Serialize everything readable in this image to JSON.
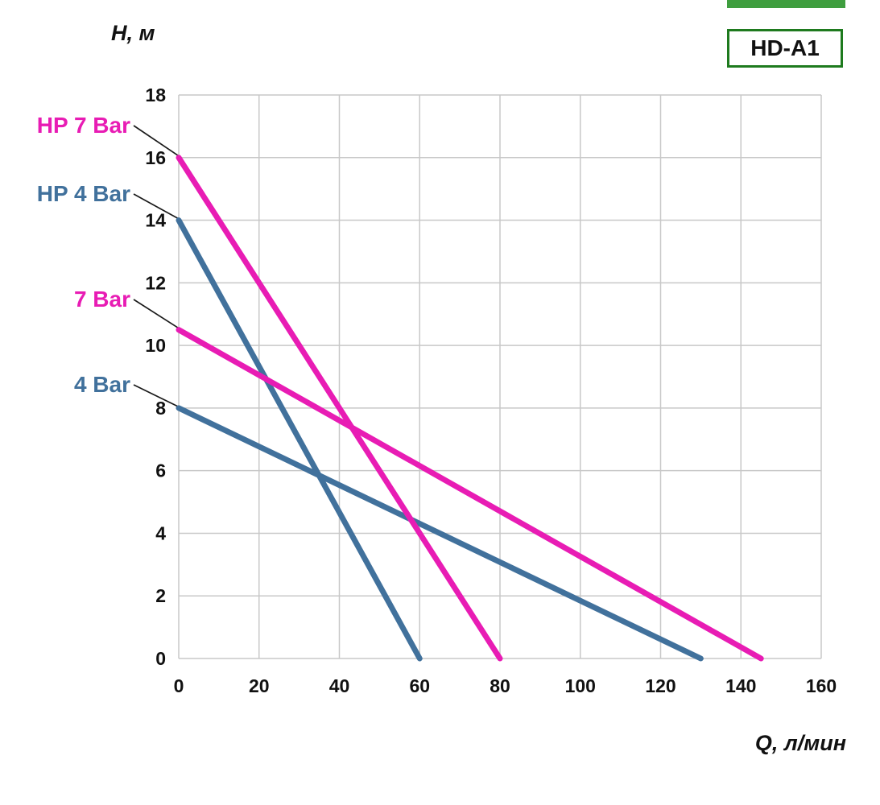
{
  "badge": {
    "model": "HD-A1"
  },
  "colors": {
    "grid": "#c8c8c8",
    "tick_text": "#111111",
    "leader": "#1a1a1a",
    "badge_border": "#1e7a1e",
    "strip_green": "#3f9e3f",
    "magenta": "#e81cb4",
    "blue": "#41719c"
  },
  "chart_data": {
    "type": "line",
    "title": "",
    "xlabel": "Q, л/мин",
    "ylabel": "H, м",
    "xlim": [
      0,
      160
    ],
    "ylim": [
      0,
      18
    ],
    "xticks": [
      0,
      20,
      40,
      60,
      80,
      100,
      120,
      140,
      160
    ],
    "yticks": [
      0,
      2,
      4,
      6,
      8,
      10,
      12,
      14,
      16,
      18
    ],
    "grid": true,
    "legend_position": "left-annotations",
    "series": [
      {
        "name": "HP 7 Bar",
        "color": "#e81cb4",
        "points": [
          [
            0,
            16
          ],
          [
            80,
            0
          ]
        ]
      },
      {
        "name": "HP 4 Bar",
        "color": "#41719c",
        "points": [
          [
            0,
            14
          ],
          [
            60,
            0
          ]
        ]
      },
      {
        "name": "7 Bar",
        "color": "#e81cb4",
        "points": [
          [
            0,
            10.5
          ],
          [
            145,
            0
          ]
        ]
      },
      {
        "name": "4 Bar",
        "color": "#41719c",
        "points": [
          [
            0,
            8
          ],
          [
            130,
            0
          ]
        ]
      }
    ]
  }
}
